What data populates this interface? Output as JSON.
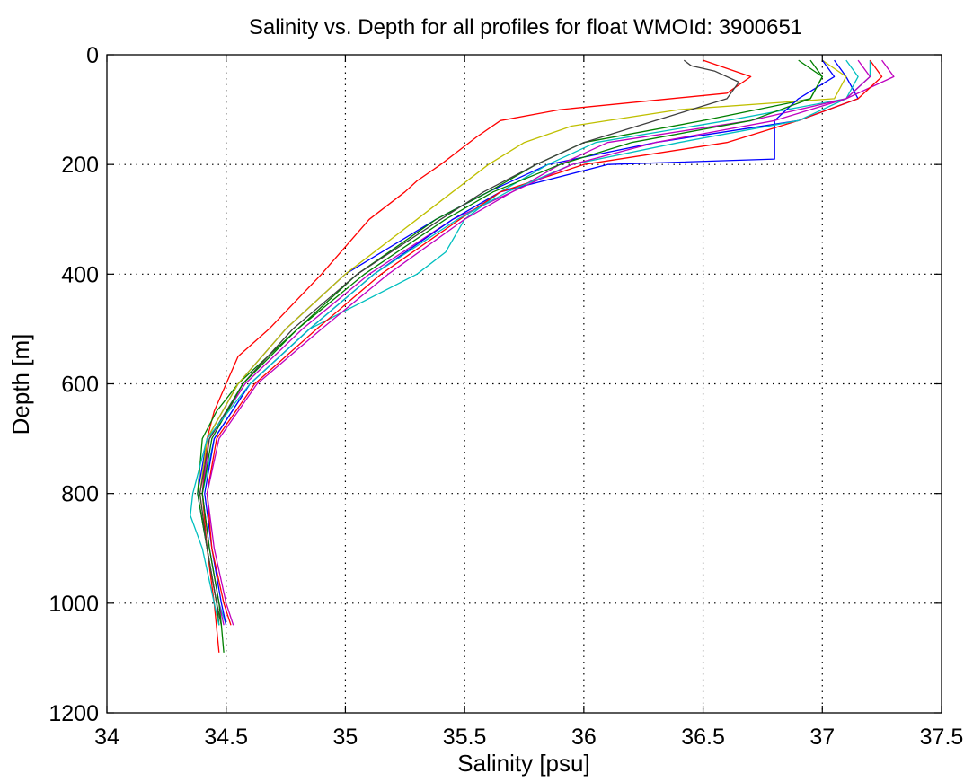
{
  "chart_data": {
    "type": "line",
    "title": "Salinity vs. Depth for all profiles for float WMOId: 3900651",
    "xlabel": "Salinity [psu]",
    "ylabel": "Depth [m]",
    "xlim": [
      34,
      37.5
    ],
    "ylim": [
      0,
      1200
    ],
    "y_reversed": true,
    "grid": true,
    "grid_style": "dotted",
    "legend": "none",
    "xticks": [
      34,
      34.5,
      35,
      35.5,
      36,
      36.5,
      37,
      37.5
    ],
    "yticks": [
      0,
      200,
      400,
      600,
      800,
      1000,
      1200
    ],
    "xtick_labels": [
      "34",
      "34.5",
      "35",
      "35.5",
      "36",
      "36.5",
      "37",
      "37.5"
    ],
    "ytick_labels": [
      "0",
      "200",
      "400",
      "600",
      "800",
      "1000",
      "1200"
    ],
    "series_colors": [
      "#0000ff",
      "#ff0000",
      "#008000",
      "#00bfbf",
      "#bf00bf",
      "#bfbf00",
      "#404040"
    ],
    "series": [
      {
        "depth": [
          10,
          40,
          80,
          120,
          160,
          200,
          250,
          300,
          400,
          500,
          600,
          700,
          800,
          900,
          1000,
          1040
        ],
        "salinity": [
          37.05,
          37.1,
          37.15,
          36.9,
          36.3,
          35.85,
          35.6,
          35.38,
          35.0,
          34.75,
          34.55,
          34.42,
          34.38,
          34.42,
          34.46,
          34.48
        ]
      },
      {
        "depth": [
          10,
          40,
          70,
          100,
          120,
          150,
          200,
          230,
          250,
          300,
          400,
          500,
          550,
          600,
          650,
          700,
          800,
          900,
          1000,
          1090
        ],
        "salinity": [
          36.5,
          36.7,
          36.6,
          35.9,
          35.65,
          35.55,
          35.4,
          35.3,
          35.25,
          35.1,
          34.9,
          34.68,
          34.55,
          34.5,
          34.45,
          34.42,
          34.4,
          34.42,
          34.45,
          34.47
        ]
      },
      {
        "depth": [
          10,
          40,
          80,
          120,
          160,
          200,
          250,
          300,
          400,
          500,
          600,
          650,
          700,
          800,
          900,
          1000,
          1040
        ],
        "salinity": [
          36.9,
          37.0,
          36.95,
          36.5,
          36.0,
          35.8,
          35.6,
          35.38,
          35.05,
          34.8,
          34.55,
          34.46,
          34.4,
          34.38,
          34.42,
          34.46,
          34.47
        ]
      },
      {
        "depth": [
          10,
          40,
          80,
          120,
          160,
          200,
          250,
          300,
          360,
          400,
          500,
          600,
          700,
          800,
          900,
          1000,
          1040
        ],
        "salinity": [
          37.2,
          37.2,
          37.1,
          36.6,
          36.05,
          35.85,
          35.65,
          35.5,
          35.42,
          35.3,
          34.85,
          34.6,
          34.45,
          34.4,
          34.43,
          34.47,
          34.5
        ]
      },
      {
        "depth": [
          10,
          40,
          80,
          120,
          160,
          200,
          250,
          300,
          400,
          500,
          600,
          700,
          800,
          900,
          1000,
          1040
        ],
        "salinity": [
          37.25,
          37.3,
          37.1,
          36.7,
          36.1,
          35.9,
          35.7,
          35.45,
          35.1,
          34.82,
          34.58,
          34.43,
          34.4,
          34.43,
          34.47,
          34.49
        ]
      },
      {
        "depth": [
          10,
          40,
          80,
          100,
          130,
          160,
          200,
          250,
          300,
          400,
          500,
          600,
          700,
          800,
          900,
          1000,
          1040
        ],
        "salinity": [
          37.0,
          37.1,
          37.05,
          36.4,
          35.95,
          35.75,
          35.6,
          35.45,
          35.3,
          35.0,
          34.75,
          34.55,
          34.42,
          34.39,
          34.42,
          34.46,
          34.48
        ]
      },
      {
        "depth": [
          10,
          20,
          30,
          50,
          80,
          120,
          160,
          200,
          250,
          300,
          400,
          500,
          600,
          700,
          800,
          900,
          1000,
          1040
        ],
        "salinity": [
          36.42,
          36.45,
          36.55,
          36.65,
          36.6,
          36.3,
          36.0,
          35.8,
          35.58,
          35.4,
          35.05,
          34.78,
          34.57,
          34.43,
          34.39,
          34.42,
          34.46,
          34.48
        ]
      },
      {
        "depth": [
          10,
          40,
          80,
          120,
          160,
          190,
          200,
          250,
          300,
          400,
          500,
          600,
          700,
          800,
          900,
          1000,
          1040
        ],
        "salinity": [
          37.0,
          37.05,
          36.9,
          36.8,
          36.8,
          36.8,
          36.1,
          35.65,
          35.45,
          35.12,
          34.85,
          34.6,
          34.45,
          34.41,
          34.44,
          34.48,
          34.5
        ]
      },
      {
        "depth": [
          10,
          40,
          80,
          120,
          160,
          200,
          250,
          300,
          400,
          500,
          600,
          700,
          800,
          900,
          1000,
          1040
        ],
        "salinity": [
          37.2,
          37.25,
          37.15,
          36.9,
          36.6,
          36.0,
          35.65,
          35.48,
          35.15,
          34.88,
          34.62,
          34.46,
          34.42,
          34.44,
          34.49,
          34.52
        ]
      },
      {
        "depth": [
          10,
          40,
          80,
          120,
          160,
          200,
          250,
          300,
          400,
          500,
          600,
          700,
          800,
          900,
          1000,
          1040,
          1090
        ],
        "salinity": [
          36.95,
          37.0,
          36.95,
          36.7,
          36.2,
          35.9,
          35.62,
          35.42,
          35.08,
          34.8,
          34.57,
          34.44,
          34.4,
          34.43,
          34.47,
          34.48,
          34.49
        ]
      },
      {
        "depth": [
          10,
          40,
          80,
          120,
          160,
          200,
          250,
          300,
          400,
          500,
          600,
          700,
          800,
          840,
          900,
          1000,
          1040
        ],
        "salinity": [
          37.1,
          37.15,
          37.1,
          36.9,
          36.4,
          35.95,
          35.68,
          35.47,
          35.12,
          34.85,
          34.6,
          34.42,
          34.36,
          34.35,
          34.4,
          34.45,
          34.47
        ]
      },
      {
        "depth": [
          10,
          40,
          80,
          120,
          160,
          200,
          250,
          300,
          400,
          500,
          600,
          700,
          800,
          900,
          1000,
          1040
        ],
        "salinity": [
          37.15,
          37.2,
          37.1,
          36.8,
          36.3,
          35.95,
          35.7,
          35.5,
          35.18,
          34.9,
          34.63,
          34.47,
          34.42,
          34.45,
          34.5,
          34.53
        ]
      }
    ]
  }
}
